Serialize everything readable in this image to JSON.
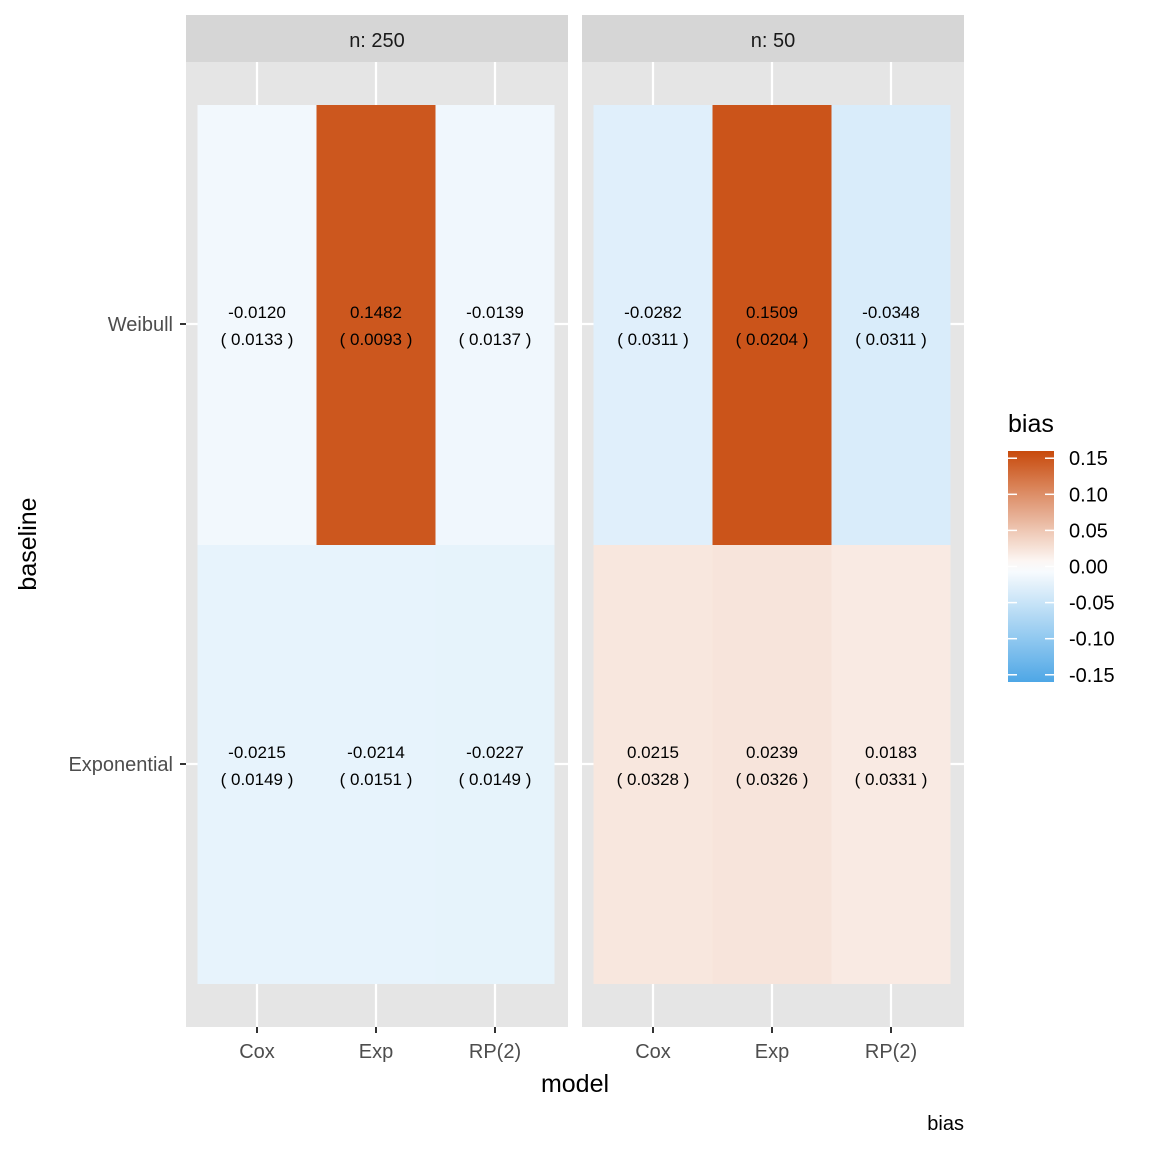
{
  "chart_data": {
    "type": "heatmap",
    "xlabel": "model",
    "ylabel": "baseline",
    "caption": "bias",
    "x_categories": [
      "Cox",
      "Exp",
      "RP(2)"
    ],
    "y_categories": [
      "Weibull",
      "Exponential"
    ],
    "legend": {
      "title": "bias",
      "placement": "right",
      "range": [
        -0.16,
        0.16
      ],
      "breaks": [
        0.15,
        0.1,
        0.05,
        0.0,
        -0.05,
        -0.1,
        -0.15
      ],
      "break_labels": [
        "0.15",
        "0.10",
        "0.05",
        "0.00",
        "-0.05",
        "-0.10",
        "-0.15"
      ],
      "colors": {
        "low": "#4ea7e6",
        "mid": "#ffffff",
        "high": "#c84a0c"
      }
    },
    "panel_background": "#e5e5e5",
    "strip_background": "#d6d6d6",
    "panels": [
      {
        "strip": "n: 250",
        "cells": [
          {
            "model": "Cox",
            "baseline": "Weibull",
            "value": -0.012,
            "label": "-0.0120",
            "se_label": "( 0.0133 )"
          },
          {
            "model": "Exp",
            "baseline": "Weibull",
            "value": 0.1482,
            "label": "0.1482",
            "se_label": "( 0.0093 )"
          },
          {
            "model": "RP(2)",
            "baseline": "Weibull",
            "value": -0.0139,
            "label": "-0.0139",
            "se_label": "( 0.0137 )"
          },
          {
            "model": "Cox",
            "baseline": "Exponential",
            "value": -0.0215,
            "label": "-0.0215",
            "se_label": "( 0.0149 )"
          },
          {
            "model": "Exp",
            "baseline": "Exponential",
            "value": -0.0214,
            "label": "-0.0214",
            "se_label": "( 0.0151 )"
          },
          {
            "model": "RP(2)",
            "baseline": "Exponential",
            "value": -0.0227,
            "label": "-0.0227",
            "se_label": "( 0.0149 )"
          }
        ]
      },
      {
        "strip": "n: 50",
        "cells": [
          {
            "model": "Cox",
            "baseline": "Weibull",
            "value": -0.0282,
            "label": "-0.0282",
            "se_label": "( 0.0311 )"
          },
          {
            "model": "Exp",
            "baseline": "Weibull",
            "value": 0.1509,
            "label": "0.1509",
            "se_label": "( 0.0204 )"
          },
          {
            "model": "RP(2)",
            "baseline": "Weibull",
            "value": -0.0348,
            "label": "-0.0348",
            "se_label": "( 0.0311 )"
          },
          {
            "model": "Cox",
            "baseline": "Exponential",
            "value": 0.0215,
            "label": "0.0215",
            "se_label": "( 0.0328 )"
          },
          {
            "model": "Exp",
            "baseline": "Exponential",
            "value": 0.0239,
            "label": "0.0239",
            "se_label": "( 0.0326 )"
          },
          {
            "model": "RP(2)",
            "baseline": "Exponential",
            "value": 0.0183,
            "label": "0.0183",
            "se_label": "( 0.0331 )"
          }
        ]
      }
    ]
  }
}
